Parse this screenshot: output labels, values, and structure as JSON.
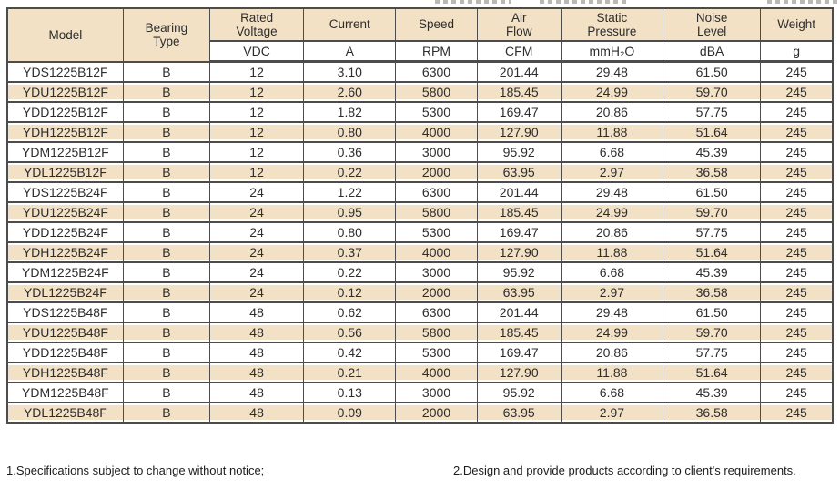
{
  "colors": {
    "header_fill": "#f2e1c4",
    "row_highlight": "#f2e1c4",
    "border": "#4c4c4c",
    "text": "#2d2d2d"
  },
  "table": {
    "corner": {
      "model": "Model",
      "bearing_type": "Bearing\nType"
    },
    "columns": [
      {
        "label": "Rated\nVoltage",
        "unit": "VDC"
      },
      {
        "label": "Current",
        "unit": "A"
      },
      {
        "label": "Speed",
        "unit": "RPM"
      },
      {
        "label": "Air\nFlow",
        "unit": "CFM"
      },
      {
        "label": "Static\nPressure",
        "unit": "mmH₂O"
      },
      {
        "label": "Noise\nLevel",
        "unit": "dBA"
      },
      {
        "label": "Weight",
        "unit": "g"
      }
    ],
    "rows": [
      {
        "model": "YDS1225B12F",
        "bearing": "B",
        "voltage": "12",
        "current": "3.10",
        "speed": "6300",
        "air_flow": "201.44",
        "static_pressure": "29.48",
        "noise": "61.50",
        "weight": "245"
      },
      {
        "model": "YDU1225B12F",
        "bearing": "B",
        "voltage": "12",
        "current": "2.60",
        "speed": "5800",
        "air_flow": "185.45",
        "static_pressure": "24.99",
        "noise": "59.70",
        "weight": "245"
      },
      {
        "model": "YDD1225B12F",
        "bearing": "B",
        "voltage": "12",
        "current": "1.82",
        "speed": "5300",
        "air_flow": "169.47",
        "static_pressure": "20.86",
        "noise": "57.75",
        "weight": "245"
      },
      {
        "model": "YDH1225B12F",
        "bearing": "B",
        "voltage": "12",
        "current": "0.80",
        "speed": "4000",
        "air_flow": "127.90",
        "static_pressure": "11.88",
        "noise": "51.64",
        "weight": "245"
      },
      {
        "model": "YDM1225B12F",
        "bearing": "B",
        "voltage": "12",
        "current": "0.36",
        "speed": "3000",
        "air_flow": "95.92",
        "static_pressure": "6.68",
        "noise": "45.39",
        "weight": "245"
      },
      {
        "model": "YDL1225B12F",
        "bearing": "B",
        "voltage": "12",
        "current": "0.22",
        "speed": "2000",
        "air_flow": "63.95",
        "static_pressure": "2.97",
        "noise": "36.58",
        "weight": "245"
      },
      {
        "model": "YDS1225B24F",
        "bearing": "B",
        "voltage": "24",
        "current": "1.22",
        "speed": "6300",
        "air_flow": "201.44",
        "static_pressure": "29.48",
        "noise": "61.50",
        "weight": "245"
      },
      {
        "model": "YDU1225B24F",
        "bearing": "B",
        "voltage": "24",
        "current": "0.95",
        "speed": "5800",
        "air_flow": "185.45",
        "static_pressure": "24.99",
        "noise": "59.70",
        "weight": "245"
      },
      {
        "model": "YDD1225B24F",
        "bearing": "B",
        "voltage": "24",
        "current": "0.80",
        "speed": "5300",
        "air_flow": "169.47",
        "static_pressure": "20.86",
        "noise": "57.75",
        "weight": "245"
      },
      {
        "model": "YDH1225B24F",
        "bearing": "B",
        "voltage": "24",
        "current": "0.37",
        "speed": "4000",
        "air_flow": "127.90",
        "static_pressure": "11.88",
        "noise": "51.64",
        "weight": "245"
      },
      {
        "model": "YDM1225B24F",
        "bearing": "B",
        "voltage": "24",
        "current": "0.22",
        "speed": "3000",
        "air_flow": "95.92",
        "static_pressure": "6.68",
        "noise": "45.39",
        "weight": "245"
      },
      {
        "model": "YDL1225B24F",
        "bearing": "B",
        "voltage": "24",
        "current": "0.12",
        "speed": "2000",
        "air_flow": "63.95",
        "static_pressure": "2.97",
        "noise": "36.58",
        "weight": "245"
      },
      {
        "model": "YDS1225B48F",
        "bearing": "B",
        "voltage": "48",
        "current": "0.62",
        "speed": "6300",
        "air_flow": "201.44",
        "static_pressure": "29.48",
        "noise": "61.50",
        "weight": "245"
      },
      {
        "model": "YDU1225B48F",
        "bearing": "B",
        "voltage": "48",
        "current": "0.56",
        "speed": "5800",
        "air_flow": "185.45",
        "static_pressure": "24.99",
        "noise": "59.70",
        "weight": "245"
      },
      {
        "model": "YDD1225B48F",
        "bearing": "B",
        "voltage": "48",
        "current": "0.42",
        "speed": "5300",
        "air_flow": "169.47",
        "static_pressure": "20.86",
        "noise": "57.75",
        "weight": "245"
      },
      {
        "model": "YDH1225B48F",
        "bearing": "B",
        "voltage": "48",
        "current": "0.21",
        "speed": "4000",
        "air_flow": "127.90",
        "static_pressure": "11.88",
        "noise": "51.64",
        "weight": "245"
      },
      {
        "model": "YDM1225B48F",
        "bearing": "B",
        "voltage": "48",
        "current": "0.13",
        "speed": "3000",
        "air_flow": "95.92",
        "static_pressure": "6.68",
        "noise": "45.39",
        "weight": "245"
      },
      {
        "model": "YDL1225B48F",
        "bearing": "B",
        "voltage": "48",
        "current": "0.09",
        "speed": "2000",
        "air_flow": "63.95",
        "static_pressure": "2.97",
        "noise": "36.58",
        "weight": "245"
      }
    ]
  },
  "footnotes": {
    "left": "1.Specifications subject to change without notice;",
    "right": "2.Design and provide products according to client's requirements."
  }
}
